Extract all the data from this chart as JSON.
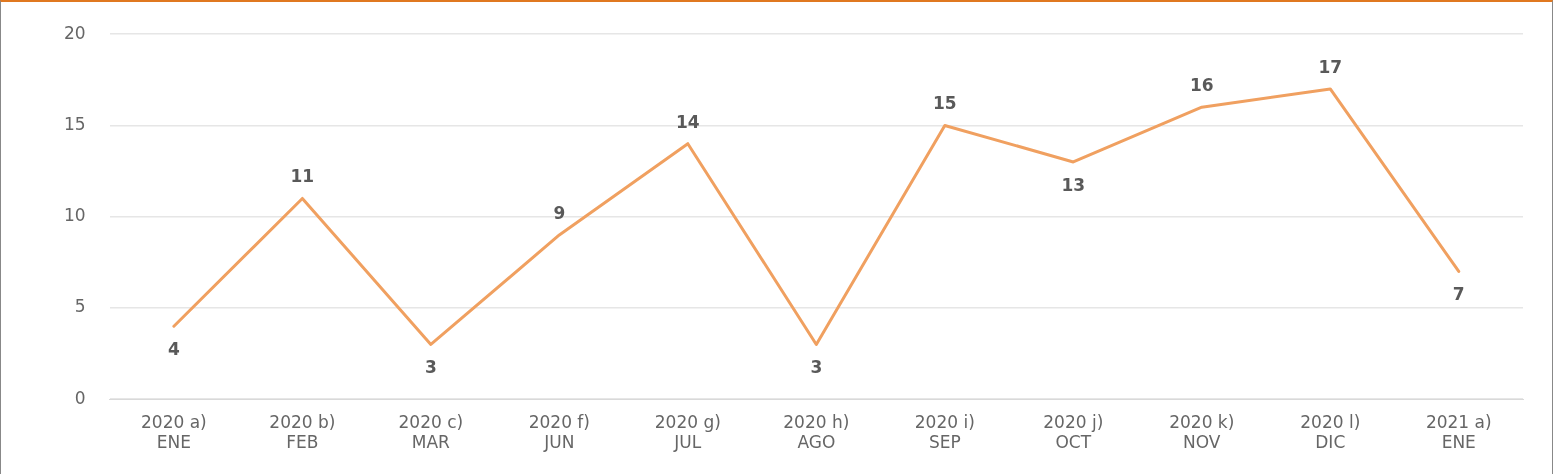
{
  "chart_data": {
    "type": "line",
    "categories": [
      "2020 a)\nENE",
      "2020 b)\nFEB",
      "2020 c)\nMAR",
      "2020 f)\nJUN",
      "2020 g)\nJUL",
      "2020 h)\nAGO",
      "2020 i)\nSEP",
      "2020 j)\nOCT",
      "2020 k)\nNOV",
      "2020 l)\nDIC",
      "2021 a)\nENE"
    ],
    "series": [
      {
        "color": "#f0a060",
        "values": [
          4,
          11,
          3,
          9,
          14,
          3,
          15,
          13,
          16,
          17,
          7
        ]
      }
    ],
    "ylim": [
      0,
      20
    ],
    "yticks": [
      0,
      5,
      10,
      15,
      20
    ],
    "grid": "y",
    "legend": false,
    "marker": "none",
    "line_style": "solid",
    "data_labels": true
  }
}
